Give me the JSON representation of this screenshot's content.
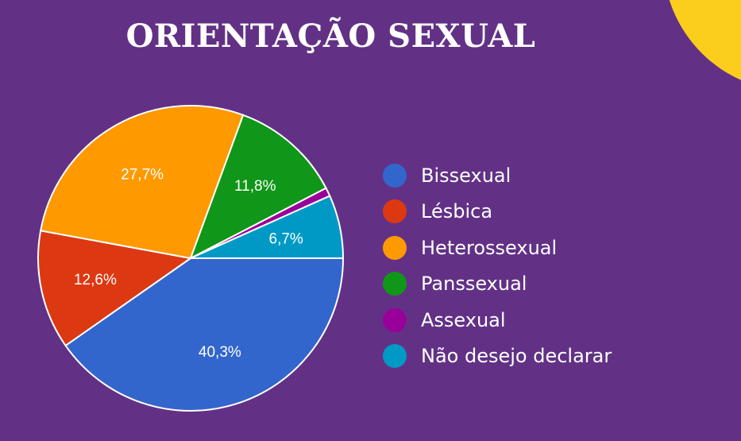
{
  "title": "ORIENTAÇÃO SEXUAL",
  "chart_data": {
    "type": "pie",
    "title": "ORIENTAÇÃO SEXUAL",
    "legend_position": "right",
    "start": "3 o'clock, clockwise",
    "slices": [
      {
        "name": "Bissexual",
        "value": 40.3,
        "label": "40,3%",
        "color": "#3366cc"
      },
      {
        "name": "Lésbica",
        "value": 12.6,
        "label": "12,6%",
        "color": "#dc3912"
      },
      {
        "name": "Heterossexual",
        "value": 27.7,
        "label": "27,7%",
        "color": "#ff9900"
      },
      {
        "name": "Panssexual",
        "value": 11.8,
        "label": "11,8%",
        "color": "#109618"
      },
      {
        "name": "Assexual",
        "value": 0.9,
        "label": "",
        "color": "#990099"
      },
      {
        "name": "Não desejo declarar",
        "value": 6.7,
        "label": "6,7%",
        "color": "#0099c6"
      }
    ]
  },
  "colors": {
    "background": "#623186",
    "accent_circle": "#fbcd1c"
  }
}
